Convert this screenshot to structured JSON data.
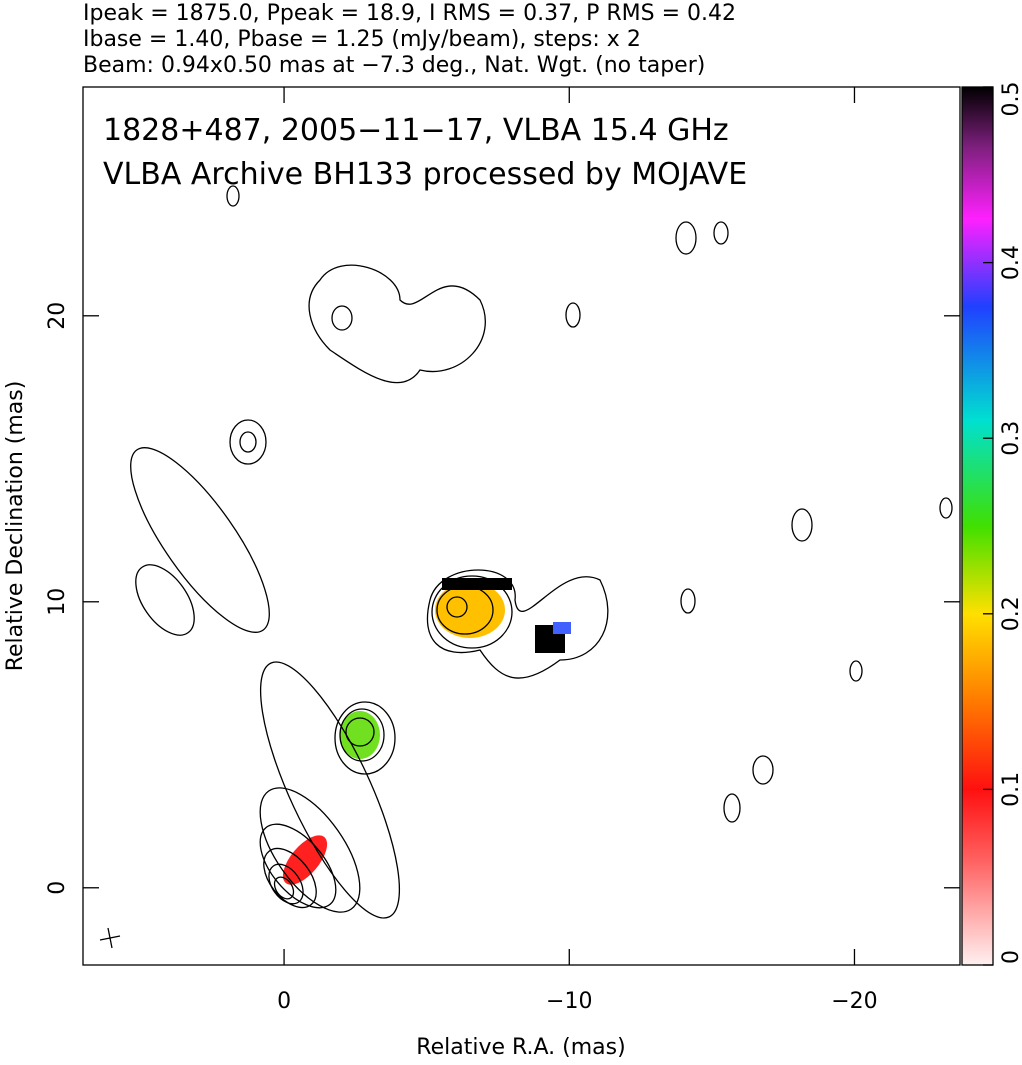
{
  "chart_data": {
    "type": "contour",
    "header_lines": [
      "Ipeak = 1875.0, Ppeak = 18.9, I RMS = 0.37, P RMS = 0.42",
      "Ibase = 1.40, Pbase = 1.25 (mJy/beam), steps: x 2",
      "Beam: 0.94x0.50 mas at −7.3 deg., Nat. Wgt. (no taper)"
    ],
    "annotations": [
      "1828+487, 2005−11−17, VLBA 15.4 GHz",
      "VLBA Archive BH133 processed by MOJAVE"
    ],
    "x_label": "Relative R.A. (mas)",
    "y_label": "Relative Declination (mas)",
    "xlim": [
      7.05,
      -23.7
    ],
    "ylim": [
      -2.7,
      28.0
    ],
    "xticks": [
      0,
      {
        "value": -10,
        "label": "−10"
      },
      {
        "value": -20,
        "label": "−20"
      }
    ],
    "yticks": [
      0,
      10,
      20
    ],
    "colorbar": {
      "lim": [
        0,
        0.5
      ],
      "ticks": [
        0,
        0.1,
        0.2,
        0.3,
        0.4,
        0.5
      ]
    }
  }
}
